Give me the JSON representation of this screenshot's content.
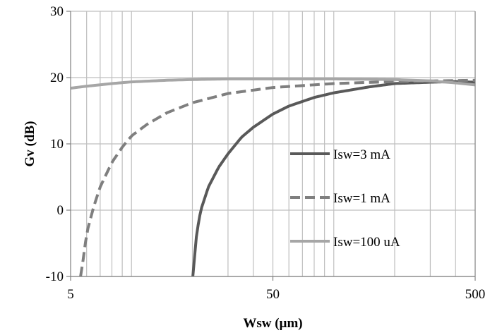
{
  "chart_data": {
    "type": "line",
    "title": "",
    "xlabel": "Wsw (µm)",
    "ylabel": "Gv (dB)",
    "xscale": "log",
    "xlim": [
      5,
      500
    ],
    "ylim": [
      -10,
      30
    ],
    "xticks": [
      5,
      50,
      500
    ],
    "yticks": [
      -10,
      0,
      10,
      20,
      30
    ],
    "grid": "vertical minor log gridlines and horizontal major gridlines",
    "legend_position": "right-middle",
    "series": [
      {
        "name": "Isw=3 mA",
        "color": "#595959",
        "dash": "solid",
        "x": [
          20.1,
          21,
          22,
          24,
          27,
          30,
          35,
          40,
          50,
          60,
          80,
          100,
          150,
          200,
          300,
          400,
          500
        ],
        "y": [
          -10,
          -3.5,
          0,
          3.5,
          6.5,
          8.5,
          11,
          12.5,
          14.5,
          15.7,
          17,
          17.7,
          18.6,
          19.1,
          19.3,
          19.4,
          19.3
        ]
      },
      {
        "name": "Isw=1 mA",
        "color": "#7f7f7f",
        "dash": "dashed",
        "x": [
          5.6,
          5.8,
          6,
          6.5,
          7,
          8,
          9,
          10,
          12,
          15,
          20,
          30,
          50,
          100,
          200,
          500
        ],
        "y": [
          -10,
          -7,
          -3.5,
          0.5,
          3.5,
          7.2,
          9.5,
          11.2,
          13,
          14.7,
          16.2,
          17.6,
          18.5,
          19.1,
          19.4,
          19.6
        ]
      },
      {
        "name": "Isw=100 uA",
        "color": "#a6a6a6",
        "dash": "solid",
        "x": [
          5,
          6,
          8,
          10,
          15,
          20,
          30,
          50,
          100,
          200,
          300,
          400,
          500
        ],
        "y": [
          18.4,
          18.7,
          19.1,
          19.35,
          19.6,
          19.7,
          19.8,
          19.8,
          19.8,
          19.7,
          19.5,
          19.2,
          18.9
        ]
      }
    ]
  }
}
